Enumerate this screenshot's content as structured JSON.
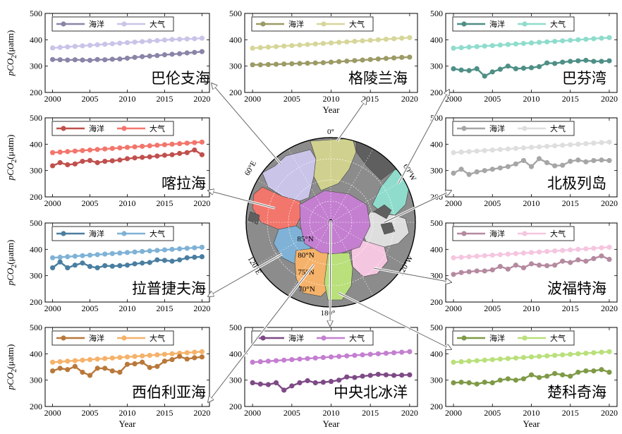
{
  "figure": {
    "ocean_label": "海洋",
    "atmosphere_label": "大气",
    "xlabel": "Year",
    "ylabel_main": "pCO",
    "ylabel_sub": "2",
    "ylabel_unit": "(μatm)",
    "map_labels": {
      "lon_0": "0°",
      "lon_60e": "60°E",
      "lon_120e": "120°E",
      "lon_180": "180°",
      "lon_120w": "120°W",
      "lon_60w": "60°W",
      "lat_85": "85°N",
      "lat_80": "80°N",
      "lat_75": "75°N",
      "lat_70": "70°N"
    }
  },
  "chart_data": [
    {
      "type": "line",
      "title": "巴伦支海",
      "x": [
        2000,
        2001,
        2002,
        2003,
        2004,
        2005,
        2006,
        2007,
        2008,
        2009,
        2010,
        2011,
        2012,
        2013,
        2014,
        2015,
        2016,
        2017,
        2018,
        2019,
        2020
      ],
      "series": [
        {
          "name": "海洋",
          "color": "#8a85a8",
          "values": [
            325,
            324,
            323,
            324,
            323,
            322,
            325,
            324,
            326,
            327,
            330,
            333,
            336,
            338,
            340,
            343,
            345,
            347,
            350,
            352,
            355
          ]
        },
        {
          "name": "大气",
          "color": "#c9c4e8",
          "values": [
            369,
            371,
            373,
            375,
            377,
            379,
            381,
            383,
            385,
            387,
            389,
            391,
            393,
            395,
            397,
            399,
            401,
            402,
            403,
            404,
            406
          ]
        }
      ],
      "xlim": [
        1999,
        2021
      ],
      "ylim": [
        200,
        500
      ],
      "xticks": [
        2000,
        2005,
        2010,
        2015,
        2020
      ],
      "yticks": [
        200,
        300,
        400,
        500
      ]
    },
    {
      "type": "line",
      "title": "格陵兰海",
      "x": [
        2000,
        2001,
        2002,
        2003,
        2004,
        2005,
        2006,
        2007,
        2008,
        2009,
        2010,
        2011,
        2012,
        2013,
        2014,
        2015,
        2016,
        2017,
        2018,
        2019,
        2020
      ],
      "series": [
        {
          "name": "海洋",
          "color": "#9c9a66",
          "values": [
            305,
            305,
            306,
            307,
            308,
            309,
            310,
            311,
            312,
            313,
            315,
            317,
            319,
            321,
            323,
            325,
            327,
            329,
            331,
            333,
            334
          ]
        },
        {
          "name": "大气",
          "color": "#d7d69a",
          "values": [
            368,
            370,
            372,
            374,
            376,
            378,
            380,
            382,
            384,
            386,
            388,
            390,
            392,
            394,
            396,
            398,
            400,
            402,
            404,
            406,
            408
          ]
        }
      ],
      "xlim": [
        1999,
        2021
      ],
      "ylim": [
        200,
        500
      ],
      "xticks": [
        2000,
        2005,
        2010,
        2015,
        2020
      ],
      "yticks": [
        200,
        300,
        400,
        500
      ]
    },
    {
      "type": "line",
      "title": "巴芬湾",
      "x": [
        2000,
        2001,
        2002,
        2003,
        2004,
        2005,
        2006,
        2007,
        2008,
        2009,
        2010,
        2011,
        2012,
        2013,
        2014,
        2015,
        2016,
        2017,
        2018,
        2019,
        2020
      ],
      "series": [
        {
          "name": "海洋",
          "color": "#4e8f86",
          "values": [
            290,
            285,
            283,
            290,
            262,
            278,
            288,
            300,
            290,
            292,
            294,
            298,
            312,
            310,
            315,
            318,
            320,
            322,
            318,
            318,
            320
          ]
        },
        {
          "name": "大气",
          "color": "#8fdccd",
          "values": [
            368,
            370,
            372,
            374,
            376,
            378,
            380,
            382,
            384,
            386,
            388,
            390,
            392,
            394,
            396,
            398,
            400,
            402,
            404,
            406,
            408
          ]
        }
      ],
      "xlim": [
        1999,
        2021
      ],
      "ylim": [
        200,
        500
      ],
      "xticks": [
        2000,
        2005,
        2010,
        2015,
        2020
      ],
      "yticks": [
        200,
        300,
        400,
        500
      ]
    },
    {
      "type": "line",
      "title": "喀拉海",
      "x": [
        2000,
        2001,
        2002,
        2003,
        2004,
        2005,
        2006,
        2007,
        2008,
        2009,
        2010,
        2011,
        2012,
        2013,
        2014,
        2015,
        2016,
        2017,
        2018,
        2019,
        2020
      ],
      "series": [
        {
          "name": "海洋",
          "color": "#c0504d",
          "values": [
            318,
            330,
            322,
            325,
            335,
            338,
            330,
            335,
            337,
            340,
            345,
            348,
            350,
            352,
            355,
            358,
            360,
            365,
            368,
            378,
            360
          ]
        },
        {
          "name": "大气",
          "color": "#f2766c",
          "values": [
            368,
            370,
            372,
            374,
            376,
            378,
            380,
            382,
            384,
            386,
            388,
            390,
            392,
            394,
            396,
            398,
            400,
            402,
            404,
            406,
            408
          ]
        }
      ],
      "xlim": [
        1999,
        2021
      ],
      "ylim": [
        200,
        500
      ],
      "xticks": [
        2000,
        2005,
        2010,
        2015,
        2020
      ],
      "yticks": [
        200,
        300,
        400,
        500
      ]
    },
    {
      "type": "line",
      "title": "北极列岛",
      "x": [
        2000,
        2001,
        2002,
        2003,
        2004,
        2005,
        2006,
        2007,
        2008,
        2009,
        2010,
        2011,
        2012,
        2013,
        2014,
        2015,
        2016,
        2017,
        2018,
        2019,
        2020
      ],
      "series": [
        {
          "name": "海洋",
          "color": "#a6a6a6",
          "values": [
            290,
            305,
            285,
            295,
            300,
            305,
            310,
            315,
            325,
            338,
            315,
            345,
            330,
            318,
            320,
            335,
            340,
            333,
            338,
            340,
            338
          ]
        },
        {
          "name": "大气",
          "color": "#dedede",
          "values": [
            368,
            370,
            372,
            374,
            376,
            378,
            380,
            382,
            384,
            386,
            388,
            390,
            392,
            394,
            396,
            398,
            400,
            402,
            404,
            406,
            408
          ]
        }
      ],
      "xlim": [
        1999,
        2021
      ],
      "ylim": [
        200,
        500
      ],
      "xticks": [
        2000,
        2005,
        2010,
        2015,
        2020
      ],
      "yticks": [
        200,
        300,
        400,
        500
      ]
    },
    {
      "type": "line",
      "title": "拉普捷夫海",
      "x": [
        2000,
        2001,
        2002,
        2003,
        2004,
        2005,
        2006,
        2007,
        2008,
        2009,
        2010,
        2011,
        2012,
        2013,
        2014,
        2015,
        2016,
        2017,
        2018,
        2019,
        2020
      ],
      "series": [
        {
          "name": "海洋",
          "color": "#4a7ea0",
          "values": [
            330,
            352,
            330,
            340,
            348,
            335,
            330,
            338,
            336,
            338,
            340,
            345,
            348,
            350,
            360,
            358,
            355,
            360,
            368,
            370,
            372
          ]
        },
        {
          "name": "大气",
          "color": "#7fb2d6",
          "values": [
            368,
            370,
            372,
            374,
            376,
            378,
            380,
            382,
            384,
            386,
            388,
            390,
            392,
            394,
            396,
            398,
            400,
            402,
            404,
            406,
            408
          ]
        }
      ],
      "xlim": [
        1999,
        2021
      ],
      "ylim": [
        200,
        500
      ],
      "xticks": [
        2000,
        2005,
        2010,
        2015,
        2020
      ],
      "yticks": [
        200,
        300,
        400,
        500
      ]
    },
    {
      "type": "line",
      "title": "波福特海",
      "x": [
        2000,
        2001,
        2002,
        2003,
        2004,
        2005,
        2006,
        2007,
        2008,
        2009,
        2010,
        2011,
        2012,
        2013,
        2014,
        2015,
        2016,
        2017,
        2018,
        2019,
        2020
      ],
      "series": [
        {
          "name": "海洋",
          "color": "#b58aa0",
          "values": [
            305,
            312,
            315,
            318,
            318,
            322,
            335,
            325,
            340,
            330,
            345,
            340,
            338,
            340,
            355,
            350,
            360,
            355,
            365,
            375,
            362
          ]
        },
        {
          "name": "大气",
          "color": "#f5c6e0",
          "values": [
            368,
            370,
            372,
            374,
            376,
            378,
            380,
            382,
            384,
            386,
            388,
            390,
            392,
            394,
            396,
            398,
            400,
            402,
            404,
            406,
            408
          ]
        }
      ],
      "xlim": [
        1999,
        2021
      ],
      "ylim": [
        200,
        500
      ],
      "xticks": [
        2000,
        2005,
        2010,
        2015,
        2020
      ],
      "yticks": [
        200,
        300,
        400,
        500
      ]
    },
    {
      "type": "line",
      "title": "西伯利亚海",
      "x": [
        2000,
        2001,
        2002,
        2003,
        2004,
        2005,
        2006,
        2007,
        2008,
        2009,
        2010,
        2011,
        2012,
        2013,
        2014,
        2015,
        2016,
        2017,
        2018,
        2019,
        2020
      ],
      "series": [
        {
          "name": "海洋",
          "color": "#b9783a",
          "values": [
            335,
            345,
            340,
            352,
            330,
            318,
            345,
            345,
            335,
            330,
            360,
            362,
            368,
            348,
            352,
            372,
            378,
            390,
            380,
            385,
            388
          ]
        },
        {
          "name": "大气",
          "color": "#f5b26a",
          "values": [
            368,
            370,
            372,
            374,
            376,
            378,
            380,
            382,
            384,
            386,
            388,
            390,
            392,
            394,
            396,
            398,
            400,
            402,
            404,
            406,
            408
          ]
        }
      ],
      "xlim": [
        1999,
        2021
      ],
      "ylim": [
        200,
        500
      ],
      "xticks": [
        2000,
        2005,
        2010,
        2015,
        2020
      ],
      "yticks": [
        200,
        300,
        400,
        500
      ]
    },
    {
      "type": "line",
      "title": "中央北冰洋",
      "x": [
        2000,
        2001,
        2002,
        2003,
        2004,
        2005,
        2006,
        2007,
        2008,
        2009,
        2010,
        2011,
        2012,
        2013,
        2014,
        2015,
        2016,
        2017,
        2018,
        2019,
        2020
      ],
      "series": [
        {
          "name": "海洋",
          "color": "#7e4a86",
          "values": [
            290,
            285,
            283,
            290,
            262,
            278,
            290,
            298,
            290,
            292,
            295,
            300,
            312,
            310,
            315,
            318,
            322,
            320,
            318,
            319,
            320
          ]
        },
        {
          "name": "大气",
          "color": "#c47fd0",
          "values": [
            368,
            370,
            372,
            374,
            376,
            378,
            380,
            382,
            384,
            386,
            388,
            390,
            392,
            394,
            396,
            398,
            400,
            402,
            404,
            406,
            408
          ]
        }
      ],
      "xlim": [
        1999,
        2021
      ],
      "ylim": [
        200,
        500
      ],
      "xticks": [
        2000,
        2005,
        2010,
        2015,
        2020
      ],
      "yticks": [
        200,
        300,
        400,
        500
      ]
    },
    {
      "type": "line",
      "title": "楚科奇海",
      "x": [
        2000,
        2001,
        2002,
        2003,
        2004,
        2005,
        2006,
        2007,
        2008,
        2009,
        2010,
        2011,
        2012,
        2013,
        2014,
        2015,
        2016,
        2017,
        2018,
        2019,
        2020
      ],
      "series": [
        {
          "name": "海洋",
          "color": "#7f9a47",
          "values": [
            290,
            292,
            290,
            285,
            292,
            290,
            300,
            305,
            300,
            305,
            320,
            310,
            315,
            325,
            320,
            315,
            330,
            335,
            335,
            340,
            330
          ]
        },
        {
          "name": "大气",
          "color": "#b9e07a",
          "values": [
            368,
            370,
            372,
            374,
            376,
            378,
            380,
            382,
            384,
            386,
            388,
            390,
            392,
            394,
            396,
            398,
            400,
            402,
            404,
            406,
            408
          ]
        }
      ],
      "xlim": [
        1999,
        2021
      ],
      "ylim": [
        200,
        500
      ],
      "xticks": [
        2000,
        2005,
        2010,
        2015,
        2020
      ],
      "yticks": [
        200,
        300,
        400,
        500
      ]
    }
  ]
}
